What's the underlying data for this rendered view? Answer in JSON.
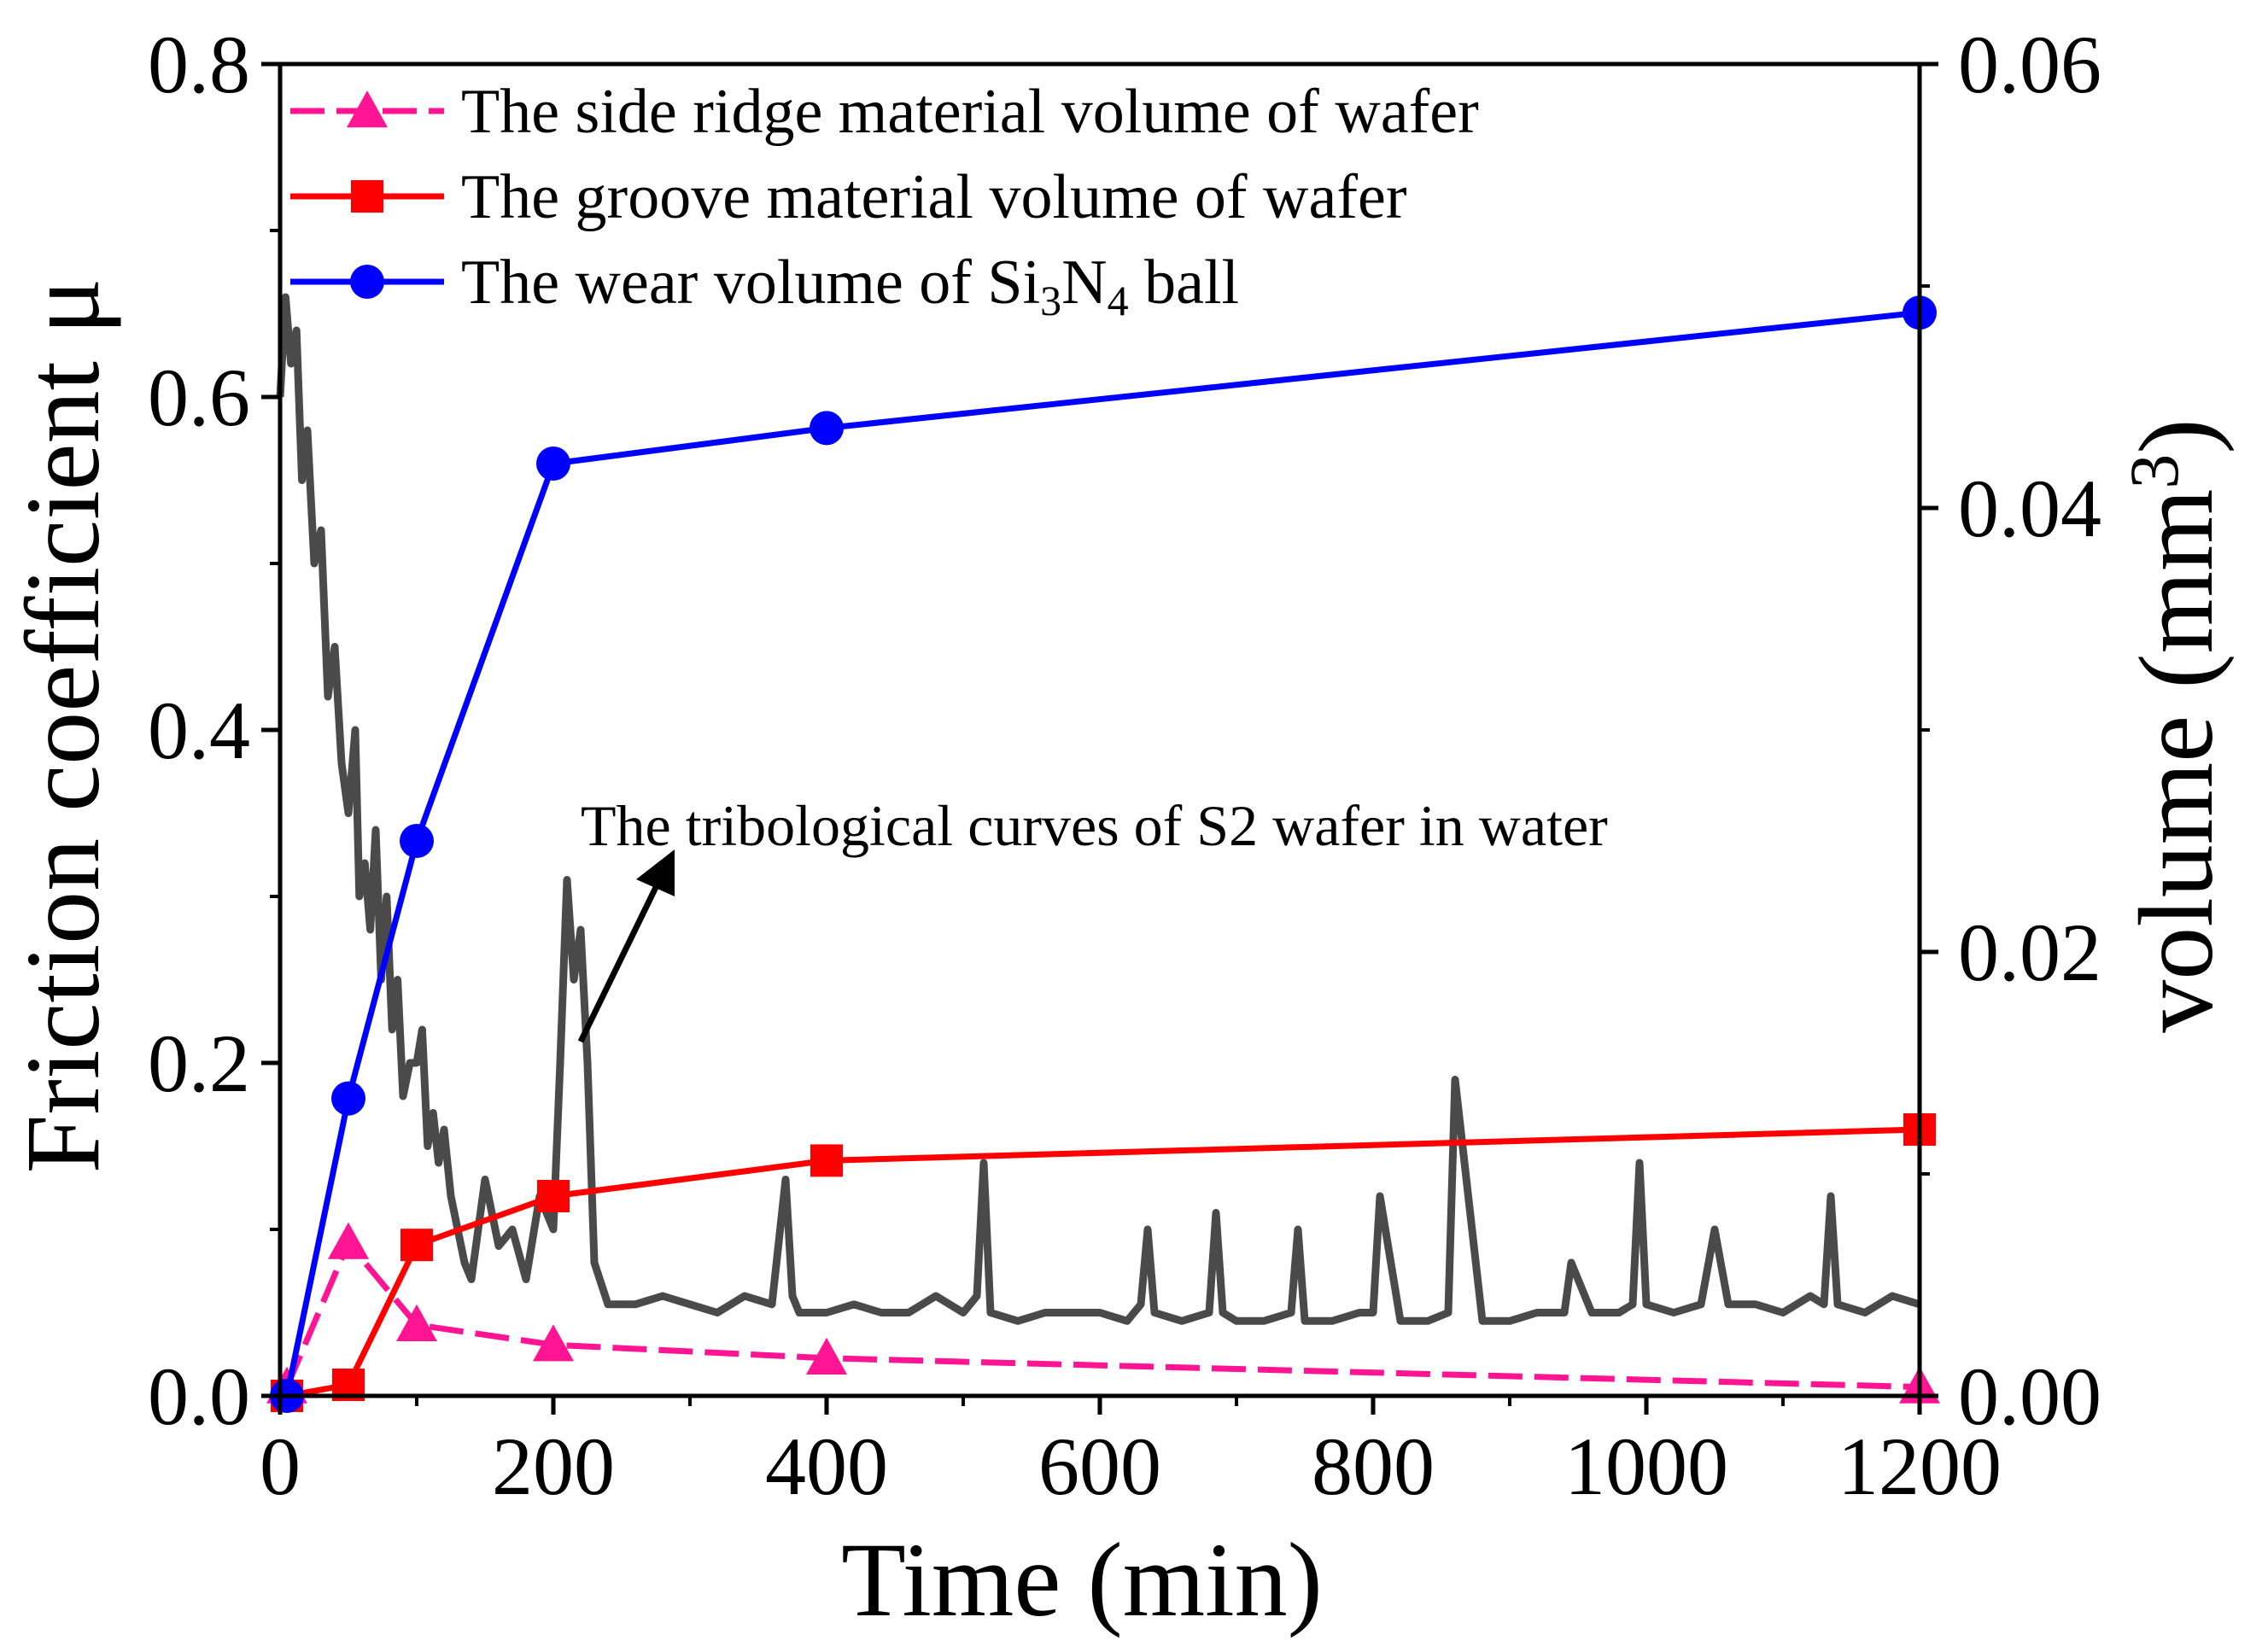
{
  "chart_data": {
    "type": "line",
    "xlabel": "Time (min)",
    "ylabel": "Friction coefficient μ",
    "ylabel_right": {
      "prefix": "volume (mm",
      "sup": "3",
      "suffix": ")"
    },
    "xlim": [
      0,
      1200
    ],
    "ylim": [
      0,
      0.8
    ],
    "ylim_right": [
      0,
      0.06
    ],
    "xticks": [
      "0",
      "200",
      "400",
      "600",
      "800",
      "1000",
      "1200"
    ],
    "yticks": [
      "0.0",
      "0.2",
      "0.4",
      "0.6",
      "0.8"
    ],
    "yticks_right": [
      "0.00",
      "0.02",
      "0.04",
      "0.06"
    ],
    "series": [
      {
        "name": "The side ridge material volume of wafer",
        "axis": "right",
        "color": "#ff1493",
        "marker": "triangle",
        "dash": true,
        "x": [
          5,
          50,
          100,
          200,
          400,
          1200
        ],
        "y": [
          0.0004,
          0.0069,
          0.0032,
          0.0023,
          0.0017,
          0.0004
        ]
      },
      {
        "name": "The groove material volume of wafer",
        "axis": "right",
        "color": "#ff0000",
        "marker": "square",
        "dash": false,
        "x": [
          5,
          50,
          100,
          200,
          400,
          1200
        ],
        "y": [
          0.0,
          0.0005,
          0.0068,
          0.009,
          0.0106,
          0.012
        ]
      },
      {
        "name": "The wear volume of Si3N4 ball",
        "legend_parts": [
          "The wear volume of Si",
          "3",
          "N",
          "4",
          " ball"
        ],
        "axis": "right",
        "color": "#0000ff",
        "marker": "circle",
        "dash": false,
        "x": [
          5,
          50,
          100,
          200,
          400,
          1200
        ],
        "y": [
          0.0,
          0.0134,
          0.025,
          0.042,
          0.0436,
          0.0488
        ]
      }
    ],
    "friction_curve": {
      "axis": "left",
      "color": "#4a4a4a",
      "x": [
        0,
        4,
        8,
        12,
        16,
        20,
        25,
        30,
        35,
        40,
        45,
        50,
        55,
        58,
        62,
        66,
        70,
        74,
        78,
        82,
        86,
        90,
        95,
        100,
        104,
        108,
        112,
        116,
        120,
        125,
        130,
        135,
        140,
        150,
        160,
        170,
        180,
        190,
        200,
        205,
        210,
        215,
        220,
        225,
        230,
        240,
        260,
        280,
        300,
        320,
        340,
        360,
        370,
        375,
        380,
        400,
        420,
        440,
        460,
        480,
        500,
        510,
        515,
        520,
        540,
        560,
        580,
        600,
        620,
        630,
        635,
        640,
        660,
        680,
        685,
        690,
        700,
        720,
        740,
        745,
        750,
        770,
        790,
        800,
        805,
        820,
        840,
        855,
        860,
        880,
        900,
        920,
        940,
        945,
        960,
        980,
        990,
        995,
        1000,
        1020,
        1040,
        1050,
        1060,
        1080,
        1100,
        1120,
        1130,
        1135,
        1140,
        1160,
        1180,
        1200
      ],
      "y": [
        0.6,
        0.66,
        0.62,
        0.64,
        0.55,
        0.58,
        0.5,
        0.52,
        0.42,
        0.45,
        0.38,
        0.35,
        0.4,
        0.3,
        0.32,
        0.28,
        0.34,
        0.25,
        0.3,
        0.22,
        0.25,
        0.18,
        0.2,
        0.2,
        0.22,
        0.15,
        0.17,
        0.14,
        0.16,
        0.12,
        0.1,
        0.08,
        0.07,
        0.13,
        0.09,
        0.1,
        0.07,
        0.12,
        0.1,
        0.2,
        0.31,
        0.25,
        0.28,
        0.2,
        0.08,
        0.055,
        0.055,
        0.06,
        0.055,
        0.05,
        0.06,
        0.055,
        0.13,
        0.06,
        0.05,
        0.05,
        0.055,
        0.05,
        0.05,
        0.06,
        0.05,
        0.06,
        0.14,
        0.05,
        0.045,
        0.05,
        0.05,
        0.05,
        0.045,
        0.055,
        0.1,
        0.05,
        0.045,
        0.05,
        0.11,
        0.05,
        0.045,
        0.045,
        0.05,
        0.1,
        0.045,
        0.045,
        0.05,
        0.05,
        0.12,
        0.045,
        0.045,
        0.05,
        0.19,
        0.045,
        0.045,
        0.05,
        0.05,
        0.08,
        0.05,
        0.05,
        0.055,
        0.14,
        0.055,
        0.05,
        0.055,
        0.1,
        0.055,
        0.055,
        0.05,
        0.06,
        0.055,
        0.12,
        0.055,
        0.05,
        0.06,
        0.055
      ]
    },
    "annotation": "The tribological curves of S2 wafer in water"
  }
}
